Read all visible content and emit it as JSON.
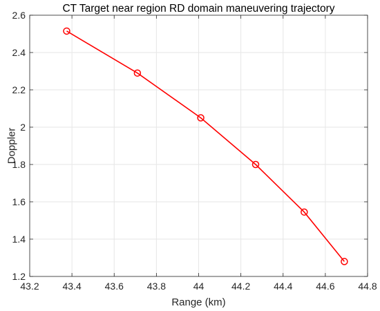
{
  "chart_data": {
    "type": "line",
    "title": "CT Target near region RD domain maneuvering trajectory",
    "xlabel": "Range (km)",
    "ylabel": "Doppler",
    "xlim": [
      43.2,
      44.8
    ],
    "ylim": [
      1.2,
      2.6
    ],
    "xticks": [
      43.2,
      43.4,
      43.6,
      43.8,
      44,
      44.2,
      44.4,
      44.6,
      44.8
    ],
    "xtick_labels": [
      "43.2",
      "43.4",
      "43.6",
      "43.8",
      "44",
      "44.2",
      "44.4",
      "44.6",
      "44.8"
    ],
    "yticks": [
      1.2,
      1.4,
      1.6,
      1.8,
      2,
      2.2,
      2.4,
      2.6
    ],
    "ytick_labels": [
      "1.2",
      "1.4",
      "1.6",
      "1.8",
      "2",
      "2.2",
      "2.4",
      "2.6"
    ],
    "grid": true,
    "series": [
      {
        "color": "#ff0000",
        "marker": "circle",
        "x": [
          43.375,
          43.71,
          44.01,
          44.27,
          44.5,
          44.69
        ],
        "y": [
          2.515,
          2.29,
          2.05,
          1.8,
          1.545,
          1.28
        ]
      }
    ]
  }
}
